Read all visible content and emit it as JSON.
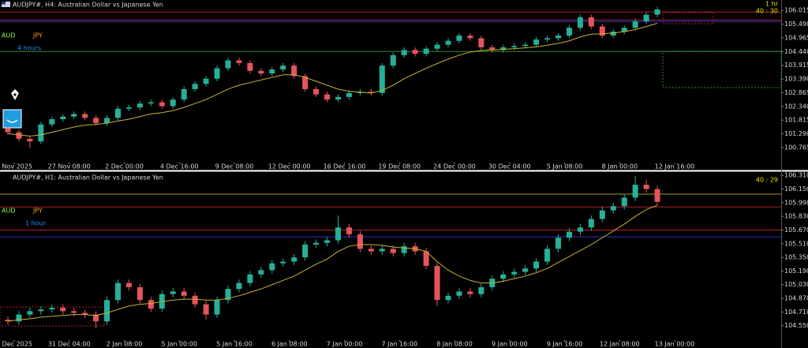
{
  "chart_data": [
    {
      "type": "candlestick",
      "title": "AUDJPY#, H4:  Australian Dollar vs Japanese Yen",
      "base": "AUD",
      "quote": "JPY",
      "period": "4 hours",
      "timeframe": "1 hr",
      "timer": "40 : 30",
      "up_color": "#26b09a",
      "down_color": "#e5545c",
      "ma_color": "#c8b22e",
      "time_labels": [
        "4 Nov 2025",
        "27 Nov 08:00",
        "2 Dec 00:00",
        "4 Dec 16:00",
        "9 Dec 08:00",
        "12 Dec 00:00",
        "16 Dec 16:00",
        "19 Dec 08:00",
        "24 Dec 00:00",
        "30 Dec 04:00",
        "5 Jan 08:00",
        "8 Jan 00:00",
        "12 Jan 16:00"
      ],
      "ylim": [
        100.22,
        106.14
      ],
      "yticks": [
        106.015,
        {
          "value": 105.49,
          "label": "105.490"
        },
        104.965,
        {
          "value": 104.44,
          "label": "104.440"
        },
        103.915,
        {
          "value": 103.39,
          "label": "103.390"
        },
        102.865,
        {
          "value": 102.34,
          "label": "102.340"
        },
        101.815,
        {
          "value": 101.29,
          "label": "101.290"
        },
        100.765
      ],
      "levels": [
        {
          "value": 105.95,
          "color": "#b0202a"
        },
        {
          "value": 105.65,
          "color": "#b0202a"
        },
        {
          "value": 105.59,
          "color": "#2a36c8"
        },
        {
          "value": 104.44,
          "color": "#2c8a2c"
        }
      ],
      "ohlc": [
        [
          101.5,
          101.6,
          101.25,
          101.35
        ],
        [
          101.35,
          101.45,
          101.0,
          101.1
        ],
        [
          101.1,
          101.2,
          100.75,
          101.0
        ],
        [
          101.0,
          101.75,
          100.9,
          101.65
        ],
        [
          101.65,
          101.95,
          101.55,
          101.85
        ],
        [
          101.85,
          102.05,
          101.75,
          101.95
        ],
        [
          101.95,
          102.15,
          101.85,
          102.05
        ],
        [
          102.05,
          102.15,
          101.8,
          101.9
        ],
        [
          101.9,
          102.0,
          101.6,
          101.7
        ],
        [
          101.7,
          102.0,
          101.6,
          101.9
        ],
        [
          101.9,
          102.35,
          101.8,
          102.25
        ],
        [
          102.25,
          102.4,
          102.15,
          102.3
        ],
        [
          102.3,
          102.55,
          102.2,
          102.45
        ],
        [
          102.45,
          102.6,
          102.35,
          102.5
        ],
        [
          102.5,
          102.6,
          102.25,
          102.35
        ],
        [
          102.35,
          102.7,
          102.25,
          102.6
        ],
        [
          102.6,
          103.1,
          102.5,
          103.0
        ],
        [
          103.0,
          103.3,
          102.9,
          103.2
        ],
        [
          103.2,
          103.5,
          103.1,
          103.4
        ],
        [
          103.4,
          103.9,
          103.3,
          103.8
        ],
        [
          103.8,
          104.2,
          103.7,
          104.1
        ],
        [
          104.1,
          104.2,
          103.9,
          104.0
        ],
        [
          104.0,
          104.1,
          103.6,
          103.7
        ],
        [
          103.7,
          103.8,
          103.5,
          103.6
        ],
        [
          103.6,
          103.85,
          103.5,
          103.75
        ],
        [
          103.75,
          104.0,
          103.65,
          103.9
        ],
        [
          103.9,
          104.0,
          103.4,
          103.5
        ],
        [
          103.5,
          103.6,
          102.9,
          103.0
        ],
        [
          103.0,
          103.1,
          102.7,
          102.8
        ],
        [
          102.8,
          102.9,
          102.5,
          102.6
        ],
        [
          102.6,
          102.8,
          102.5,
          102.7
        ],
        [
          102.7,
          102.95,
          102.6,
          102.85
        ],
        [
          102.85,
          103.0,
          102.75,
          102.9
        ],
        [
          102.9,
          103.0,
          102.75,
          102.85
        ],
        [
          102.85,
          104.0,
          102.75,
          103.9
        ],
        [
          103.9,
          104.4,
          103.8,
          104.3
        ],
        [
          104.3,
          104.6,
          104.2,
          104.5
        ],
        [
          104.5,
          104.6,
          104.25,
          104.35
        ],
        [
          104.35,
          104.65,
          104.25,
          104.55
        ],
        [
          104.55,
          104.8,
          104.45,
          104.7
        ],
        [
          104.7,
          104.95,
          104.6,
          104.85
        ],
        [
          104.85,
          105.15,
          104.75,
          105.05
        ],
        [
          105.05,
          105.15,
          104.85,
          104.95
        ],
        [
          104.95,
          105.05,
          104.5,
          104.6
        ],
        [
          104.6,
          104.7,
          104.4,
          104.5
        ],
        [
          104.5,
          104.7,
          104.4,
          104.6
        ],
        [
          104.6,
          104.75,
          104.5,
          104.65
        ],
        [
          104.65,
          104.8,
          104.55,
          104.7
        ],
        [
          104.7,
          105.0,
          104.6,
          104.9
        ],
        [
          104.9,
          105.05,
          104.8,
          104.95
        ],
        [
          104.95,
          105.15,
          104.85,
          105.05
        ],
        [
          105.05,
          105.45,
          104.95,
          105.35
        ],
        [
          105.35,
          105.85,
          105.25,
          105.75
        ],
        [
          105.75,
          105.85,
          105.3,
          105.4
        ],
        [
          105.4,
          105.5,
          104.95,
          105.05
        ],
        [
          105.05,
          105.3,
          104.95,
          105.2
        ],
        [
          105.2,
          105.45,
          105.1,
          105.35
        ],
        [
          105.35,
          105.7,
          105.25,
          105.6
        ],
        [
          105.6,
          105.95,
          105.5,
          105.85
        ],
        [
          105.85,
          106.15,
          105.75,
          106.05
        ]
      ],
      "ma": [
        101.3,
        101.25,
        101.2,
        101.25,
        101.35,
        101.45,
        101.55,
        101.62,
        101.65,
        101.7,
        101.78,
        101.85,
        101.95,
        102.05,
        102.1,
        102.18,
        102.3,
        102.45,
        102.6,
        102.8,
        103.0,
        103.15,
        103.25,
        103.35,
        103.45,
        103.55,
        103.55,
        103.45,
        103.3,
        103.15,
        103.0,
        102.92,
        102.88,
        102.85,
        102.95,
        103.15,
        103.4,
        103.6,
        103.8,
        103.98,
        104.15,
        104.3,
        104.42,
        104.48,
        104.5,
        104.52,
        104.55,
        104.58,
        104.62,
        104.68,
        104.75,
        104.85,
        105.0,
        105.1,
        105.12,
        105.15,
        105.2,
        105.28,
        105.4,
        105.52
      ]
    },
    {
      "type": "candlestick",
      "title": "AUDJPY#, H1:  Australian Dollar vs Japanese Yen",
      "base": "AUD",
      "quote": "JPY",
      "period": "1 hour",
      "timer": "40 : 29",
      "up_color": "#26b09a",
      "down_color": "#e5545c",
      "ma_color": "#c8b22e",
      "time_labels": [
        "0 Dec 2025",
        "31 Dec 04:00",
        "2 Jan 08:00",
        "5 Jan 00:00",
        "5 Jan 16:00",
        "6 Jan 08:00",
        "7 Jan 00:00",
        "7 Jan 16:00",
        "8 Jan 08:00",
        "9 Jan 00:00",
        "9 Jan 16:00",
        "12 Jan 08:00",
        "13 Jan 00:00"
      ],
      "ylim": [
        104.39,
        106.34
      ],
      "yticks": [
        {
          "value": 106.31,
          "label": "106.310"
        },
        {
          "value": 106.15,
          "label": "106.150"
        },
        {
          "value": 105.99,
          "label": "105.990"
        },
        {
          "value": 105.83,
          "label": "105.830"
        },
        {
          "value": 105.67,
          "label": "105.670"
        },
        {
          "value": 105.51,
          "label": "105.510"
        },
        {
          "value": 105.35,
          "label": "105.350"
        },
        {
          "value": 105.19,
          "label": "105.190"
        },
        {
          "value": 105.03,
          "label": "105.030"
        },
        {
          "value": 104.87,
          "label": "104.870"
        },
        {
          "value": 104.71,
          "label": "104.710"
        },
        {
          "value": 104.55,
          "label": "104.550"
        }
      ],
      "levels": [
        {
          "value": 106.09,
          "color": "#a89a22"
        },
        {
          "value": 105.94,
          "color": "#b0202a"
        },
        {
          "value": 105.67,
          "color": "#b0202a"
        },
        {
          "value": 105.59,
          "color": "#2a36c8"
        }
      ],
      "ohlc": [
        [
          104.62,
          104.66,
          104.56,
          104.6
        ],
        [
          104.6,
          104.72,
          104.56,
          104.68
        ],
        [
          104.68,
          104.76,
          104.64,
          104.72
        ],
        [
          104.72,
          104.78,
          104.68,
          104.74
        ],
        [
          104.74,
          104.8,
          104.7,
          104.76
        ],
        [
          104.76,
          104.8,
          104.68,
          104.72
        ],
        [
          104.72,
          104.76,
          104.66,
          104.7
        ],
        [
          104.7,
          104.74,
          104.64,
          104.68
        ],
        [
          104.68,
          104.72,
          104.52,
          104.6
        ],
        [
          104.6,
          104.89,
          104.56,
          104.85
        ],
        [
          104.85,
          105.09,
          104.81,
          105.05
        ],
        [
          105.05,
          105.09,
          104.96,
          105.0
        ],
        [
          105.0,
          105.04,
          104.81,
          104.85
        ],
        [
          104.85,
          104.89,
          104.71,
          104.75
        ],
        [
          104.75,
          104.96,
          104.71,
          104.92
        ],
        [
          104.92,
          104.99,
          104.88,
          104.95
        ],
        [
          104.95,
          104.99,
          104.86,
          104.9
        ],
        [
          104.9,
          104.94,
          104.76,
          104.8
        ],
        [
          104.8,
          104.84,
          104.62,
          104.68
        ],
        [
          104.68,
          104.89,
          104.64,
          104.85
        ],
        [
          104.85,
          105.02,
          104.81,
          104.98
        ],
        [
          104.98,
          105.09,
          104.94,
          105.05
        ],
        [
          105.05,
          105.19,
          105.01,
          105.15
        ],
        [
          105.15,
          105.24,
          105.11,
          105.2
        ],
        [
          105.2,
          105.32,
          105.16,
          105.28
        ],
        [
          105.28,
          105.34,
          105.24,
          105.3
        ],
        [
          105.3,
          105.39,
          105.26,
          105.35
        ],
        [
          105.35,
          105.54,
          105.31,
          105.5
        ],
        [
          105.5,
          105.56,
          105.46,
          105.52
        ],
        [
          105.52,
          105.59,
          105.48,
          105.55
        ],
        [
          105.55,
          105.84,
          105.51,
          105.7
        ],
        [
          105.7,
          105.74,
          105.58,
          105.62
        ],
        [
          105.62,
          105.66,
          105.41,
          105.45
        ],
        [
          105.45,
          105.49,
          105.38,
          105.42
        ],
        [
          105.42,
          105.49,
          105.38,
          105.45
        ],
        [
          105.45,
          105.49,
          105.36,
          105.4
        ],
        [
          105.4,
          105.52,
          105.36,
          105.48
        ],
        [
          105.48,
          105.52,
          105.38,
          105.42
        ],
        [
          105.42,
          105.46,
          105.21,
          105.25
        ],
        [
          105.25,
          105.29,
          104.78,
          104.85
        ],
        [
          104.85,
          104.94,
          104.81,
          104.9
        ],
        [
          104.9,
          104.99,
          104.86,
          104.95
        ],
        [
          104.95,
          104.99,
          104.88,
          104.92
        ],
        [
          104.92,
          105.04,
          104.88,
          105.0
        ],
        [
          105.0,
          105.14,
          104.96,
          105.1
        ],
        [
          105.1,
          105.19,
          105.06,
          105.15
        ],
        [
          105.15,
          105.22,
          105.11,
          105.18
        ],
        [
          105.18,
          105.26,
          105.14,
          105.22
        ],
        [
          105.22,
          105.34,
          105.18,
          105.3
        ],
        [
          105.3,
          105.49,
          105.26,
          105.45
        ],
        [
          105.45,
          105.62,
          105.41,
          105.58
        ],
        [
          105.58,
          105.69,
          105.54,
          105.65
        ],
        [
          105.65,
          105.74,
          105.61,
          105.7
        ],
        [
          105.7,
          105.84,
          105.66,
          105.8
        ],
        [
          105.8,
          105.94,
          105.76,
          105.9
        ],
        [
          105.9,
          105.99,
          105.86,
          105.95
        ],
        [
          105.95,
          106.09,
          105.91,
          106.05
        ],
        [
          106.05,
          106.3,
          106.01,
          106.2
        ],
        [
          106.2,
          106.26,
          106.11,
          106.15
        ],
        [
          106.15,
          106.19,
          105.96,
          106.0
        ]
      ],
      "ma": [
        104.6,
        104.62,
        104.63,
        104.65,
        104.66,
        104.67,
        104.68,
        104.68,
        104.67,
        104.7,
        104.74,
        104.78,
        104.8,
        104.81,
        104.83,
        104.85,
        104.86,
        104.86,
        104.85,
        104.85,
        104.87,
        104.9,
        104.94,
        104.98,
        105.03,
        105.08,
        105.13,
        105.2,
        105.27,
        105.33,
        105.42,
        105.48,
        105.5,
        105.5,
        105.49,
        105.47,
        105.46,
        105.45,
        105.42,
        105.3,
        105.2,
        105.13,
        105.08,
        105.05,
        105.05,
        105.07,
        105.1,
        105.13,
        105.17,
        105.22,
        105.29,
        105.36,
        105.43,
        105.5,
        105.58,
        105.66,
        105.74,
        105.83,
        105.91,
        105.96
      ]
    }
  ]
}
